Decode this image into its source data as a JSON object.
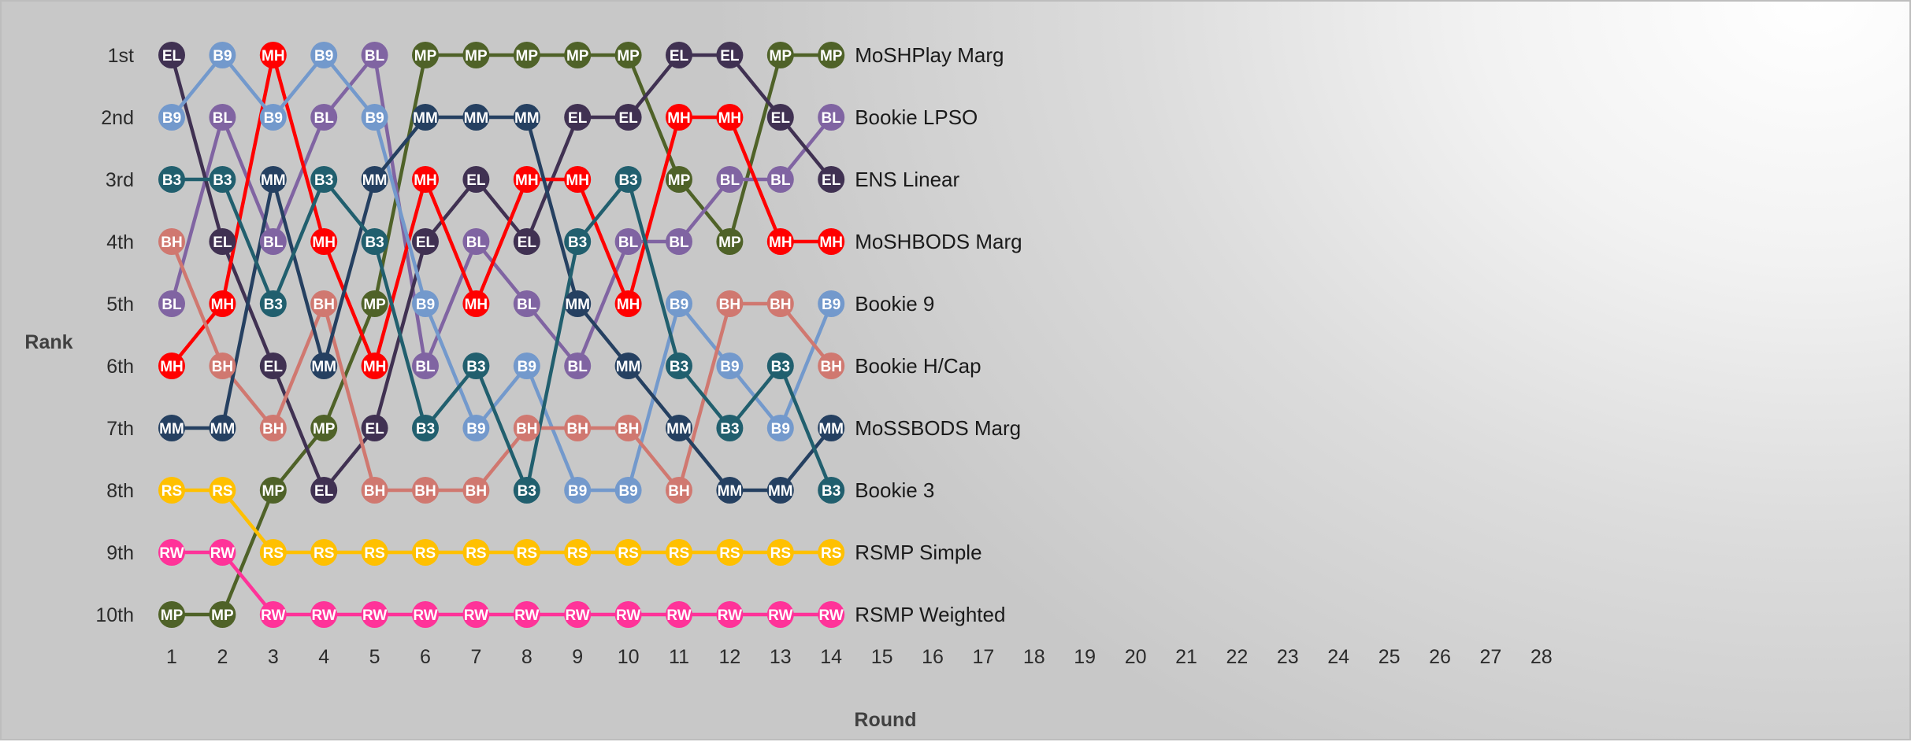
{
  "chart_data": {
    "type": "line",
    "title": "",
    "xlabel": "Round",
    "ylabel": "Rank",
    "x_ticks": [
      1,
      2,
      3,
      4,
      5,
      6,
      7,
      8,
      9,
      10,
      11,
      12,
      13,
      14,
      15,
      16,
      17,
      18,
      19,
      20,
      21,
      22,
      23,
      24,
      25,
      26,
      27,
      28
    ],
    "y_ticks": [
      "1st",
      "2nd",
      "3rd",
      "4th",
      "5th",
      "6th",
      "7th",
      "8th",
      "9th",
      "10th"
    ],
    "xlim": [
      1,
      28
    ],
    "ylim": [
      1,
      10
    ],
    "y_inverted": true,
    "grid": false,
    "legend": "end-of-line labels",
    "series": [
      {
        "name": "MoSHPlay Marg",
        "abbr": "MP",
        "color": "#4f6228",
        "values": [
          10,
          10,
          8,
          7,
          5,
          1,
          1,
          1,
          1,
          1,
          3,
          4,
          1,
          1
        ]
      },
      {
        "name": "Bookie LPSO",
        "abbr": "BL",
        "color": "#8064a2",
        "values": [
          5,
          2,
          4,
          2,
          1,
          6,
          4,
          5,
          6,
          4,
          4,
          3,
          3,
          2
        ]
      },
      {
        "name": "ENS Linear",
        "abbr": "EL",
        "color": "#403152",
        "values": [
          1,
          4,
          6,
          8,
          7,
          4,
          3,
          4,
          2,
          2,
          1,
          1,
          2,
          3
        ]
      },
      {
        "name": "MoSHBODS Marg",
        "abbr": "MH",
        "color": "#ff0000",
        "values": [
          6,
          5,
          1,
          4,
          6,
          3,
          5,
          3,
          3,
          5,
          2,
          2,
          4,
          4
        ]
      },
      {
        "name": "Bookie 9",
        "abbr": "B9",
        "color": "#7399cc",
        "values": [
          2,
          1,
          2,
          1,
          2,
          5,
          7,
          6,
          8,
          8,
          5,
          6,
          7,
          5
        ]
      },
      {
        "name": "Bookie H/Cap",
        "abbr": "BH",
        "color": "#d07870",
        "values": [
          4,
          6,
          7,
          5,
          8,
          8,
          8,
          7,
          7,
          7,
          8,
          5,
          5,
          6
        ]
      },
      {
        "name": "MoSSBODS Marg",
        "abbr": "MM",
        "color": "#254061",
        "values": [
          7,
          7,
          3,
          6,
          3,
          2,
          2,
          2,
          5,
          6,
          7,
          8,
          8,
          7
        ]
      },
      {
        "name": "Bookie 3",
        "abbr": "B3",
        "color": "#215f6e",
        "values": [
          3,
          3,
          5,
          3,
          4,
          7,
          6,
          8,
          4,
          3,
          6,
          7,
          6,
          8
        ]
      },
      {
        "name": "RSMP Simple",
        "abbr": "RS",
        "color": "#ffc000",
        "values": [
          8,
          8,
          9,
          9,
          9,
          9,
          9,
          9,
          9,
          9,
          9,
          9,
          9,
          9
        ]
      },
      {
        "name": "RSMP Weighted",
        "abbr": "RW",
        "color": "#ff3399",
        "values": [
          9,
          9,
          10,
          10,
          10,
          10,
          10,
          10,
          10,
          10,
          10,
          10,
          10,
          10
        ]
      }
    ]
  }
}
